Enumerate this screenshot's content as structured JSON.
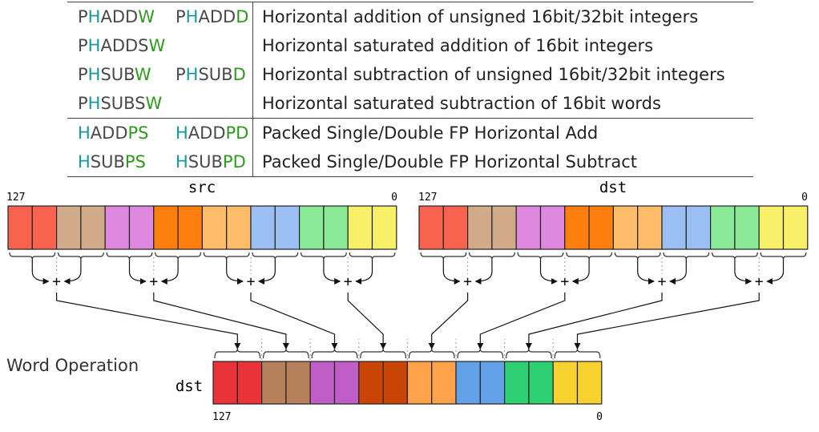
{
  "table": {
    "groups": [
      {
        "rows": [
          {
            "m1": [
              {
                "t": "P",
                "c": "gray"
              },
              {
                "t": "H",
                "c": "teal"
              },
              {
                "t": "ADD",
                "c": "gray"
              },
              {
                "t": "W",
                "c": "green"
              }
            ],
            "m2": [
              {
                "t": "P",
                "c": "gray"
              },
              {
                "t": "H",
                "c": "teal"
              },
              {
                "t": "ADD",
                "c": "gray"
              },
              {
                "t": "D",
                "c": "green"
              }
            ],
            "desc": "Horizontal addition of unsigned 16bit/32bit integers"
          },
          {
            "m1": [
              {
                "t": "P",
                "c": "gray"
              },
              {
                "t": "H",
                "c": "teal"
              },
              {
                "t": "ADDS",
                "c": "gray"
              },
              {
                "t": "W",
                "c": "green"
              }
            ],
            "m2": [],
            "desc": "Horizontal saturated addition of 16bit integers"
          },
          {
            "m1": [
              {
                "t": "P",
                "c": "gray"
              },
              {
                "t": "H",
                "c": "teal"
              },
              {
                "t": "SUB",
                "c": "gray"
              },
              {
                "t": "W",
                "c": "green"
              }
            ],
            "m2": [
              {
                "t": "P",
                "c": "gray"
              },
              {
                "t": "H",
                "c": "teal"
              },
              {
                "t": "SUB",
                "c": "gray"
              },
              {
                "t": "D",
                "c": "green"
              }
            ],
            "desc": "Horizontal subtraction of unsigned 16bit/32bit integers"
          },
          {
            "m1": [
              {
                "t": "P",
                "c": "gray"
              },
              {
                "t": "H",
                "c": "teal"
              },
              {
                "t": "SUBS",
                "c": "gray"
              },
              {
                "t": "W",
                "c": "green"
              }
            ],
            "m2": [],
            "desc": "Horizontal saturated subtraction of 16bit words"
          }
        ]
      },
      {
        "rows": [
          {
            "m1": [
              {
                "t": "H",
                "c": "teal"
              },
              {
                "t": "ADD",
                "c": "gray"
              },
              {
                "t": "PS",
                "c": "green"
              }
            ],
            "m2": [
              {
                "t": "H",
                "c": "teal"
              },
              {
                "t": "ADD",
                "c": "gray"
              },
              {
                "t": "PD",
                "c": "green"
              }
            ],
            "desc": "Packed Single/Double FP Horizontal Add"
          },
          {
            "m1": [
              {
                "t": "H",
                "c": "teal"
              },
              {
                "t": "SUB",
                "c": "gray"
              },
              {
                "t": "PS",
                "c": "green"
              }
            ],
            "m2": [
              {
                "t": "H",
                "c": "teal"
              },
              {
                "t": "SUB",
                "c": "gray"
              },
              {
                "t": "PD",
                "c": "green"
              }
            ],
            "desc": "Packed Single/Double FP Horizontal Subtract"
          }
        ]
      }
    ]
  },
  "diagram": {
    "src_label": "src",
    "dst_label": "dst",
    "out_label": "dst",
    "bit_high": "127",
    "bit_low": "0",
    "operation_label": "Word Operation",
    "op_symbol": "+",
    "input_colors": [
      "#f8624f",
      "#f8624f",
      "#d0aa89",
      "#d0aa89",
      "#df88e0",
      "#df88e0",
      "#ff7f0e",
      "#ff7f0e",
      "#ffbc6a",
      "#ffbc6a",
      "#9bbff3",
      "#9bbff3",
      "#8aea98",
      "#8aea98",
      "#f9f06a",
      "#f9f06a"
    ],
    "output_colors": [
      "#ea3338",
      "#ea3338",
      "#b5805a",
      "#b5805a",
      "#c05ec8",
      "#c05ec8",
      "#c94506",
      "#c94506",
      "#ffa24a",
      "#ffa24a",
      "#62a1e8",
      "#62a1e8",
      "#2fcf74",
      "#2fcf74",
      "#f8d330",
      "#f8d330"
    ]
  }
}
